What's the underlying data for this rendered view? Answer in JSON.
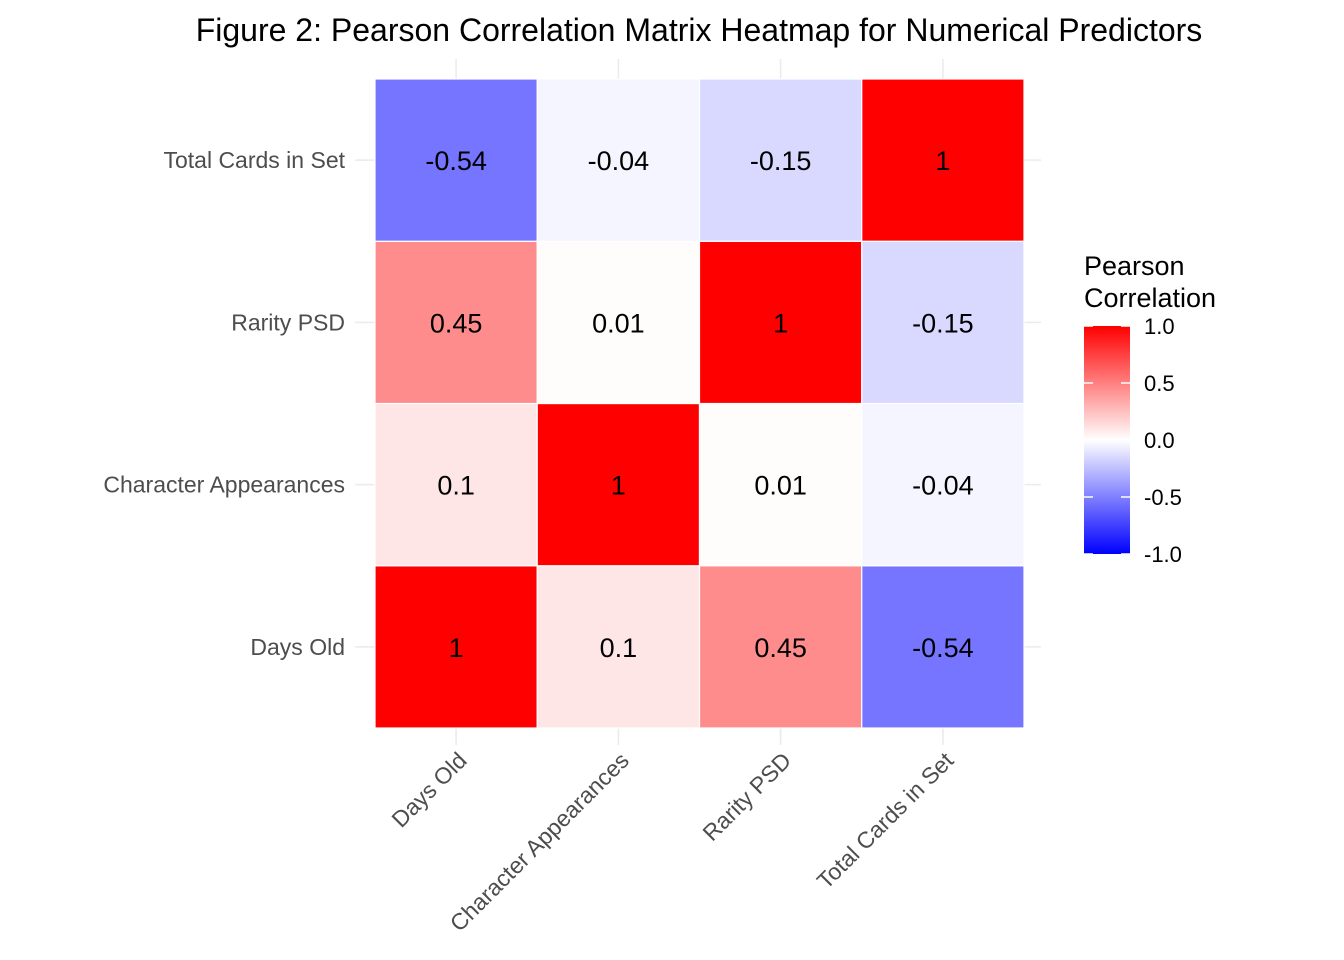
{
  "chart_data": {
    "type": "heatmap",
    "title": "Figure 2: Pearson Correlation Matrix Heatmap for Numerical Predictors",
    "x_categories": [
      "Days Old",
      "Character Appearances",
      "Rarity PSD",
      "Total Cards in Set"
    ],
    "y_categories": [
      "Days Old",
      "Character Appearances",
      "Rarity PSD",
      "Total Cards in Set"
    ],
    "matrix": [
      [
        1,
        0.1,
        0.45,
        -0.54
      ],
      [
        0.1,
        1,
        0.01,
        -0.04
      ],
      [
        0.45,
        0.01,
        1,
        -0.15
      ],
      [
        -0.54,
        -0.04,
        -0.15,
        1
      ]
    ],
    "labels": [
      [
        "1",
        "0.1",
        "0.45",
        "-0.54"
      ],
      [
        "0.1",
        "1",
        "0.01",
        "-0.04"
      ],
      [
        "0.45",
        "0.01",
        "1",
        "-0.15"
      ],
      [
        "-0.54",
        "-0.04",
        "-0.15",
        "1"
      ]
    ],
    "legend": {
      "title_lines": [
        "Pearson",
        "Correlation"
      ],
      "limits": [
        -1,
        1
      ],
      "ticks": [
        1.0,
        0.5,
        0.0,
        -0.5,
        -1.0
      ],
      "tick_labels": [
        "1.0",
        "0.5",
        "0.0",
        "-0.5",
        "-1.0"
      ],
      "colors": {
        "low": "#0000ff",
        "mid": "#ffffff",
        "high": "#ff0000"
      },
      "placement": "right"
    },
    "xlabel": "",
    "ylabel": "",
    "grid": true
  }
}
